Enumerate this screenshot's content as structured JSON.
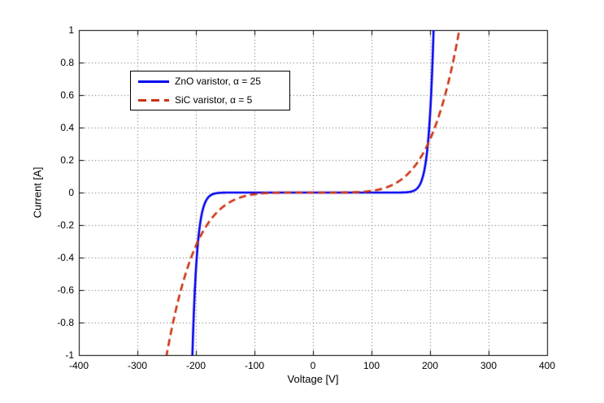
{
  "figure": {
    "background": "#ffffff",
    "axis_color": "#000000",
    "grid_style": "dotted",
    "grid_color": "rgba(0,0,0,0.6)"
  },
  "chart_data": {
    "type": "line",
    "title": "",
    "xlabel": "Voltage [V]",
    "ylabel": "Current [A]",
    "xlim": [
      -400,
      400
    ],
    "ylim": [
      -1,
      1
    ],
    "xticks": [
      -400,
      -300,
      -200,
      -100,
      0,
      100,
      200,
      300,
      400
    ],
    "xtick_labels": [
      "-400",
      "-300",
      "-200",
      "-100",
      "0",
      "100",
      "200",
      "300",
      "400"
    ],
    "yticks": [
      1,
      0.8,
      0.6,
      0.4,
      0.2,
      0,
      -0.2,
      -0.4,
      -0.6,
      -0.8,
      -1
    ],
    "ytick_labels": [
      "1",
      "0.8",
      "0.6",
      "0.4",
      "0.2",
      "0",
      "-0.2",
      "-0.4",
      "-0.6",
      "-0.8",
      "-1"
    ],
    "grid": "on",
    "legend": {
      "position": "upper-left-inside",
      "border_color": "#000000",
      "background": "#ffffff"
    },
    "series": [
      {
        "name": "ZnO varistor, α = 25",
        "color": "#0000EE",
        "style": "solid",
        "line_width": 2.6,
        "model": {
          "type": "power_law",
          "formula": "I = sign(V)*(|V|/Vref)^alpha",
          "vref": 206,
          "alpha": 25
        },
        "sample_points": {
          "V": [
            -206,
            -204,
            -200,
            -190,
            -175,
            -150,
            -100,
            0,
            100,
            150,
            175,
            190,
            200,
            204,
            206
          ],
          "I": [
            -1.0,
            -0.78,
            -0.48,
            -0.13,
            -0.017,
            -0.0004,
            0,
            0,
            0,
            0.0004,
            0.017,
            0.13,
            0.48,
            0.78,
            1.0
          ]
        }
      },
      {
        "name": "SiC varistor, α = 5",
        "color": "#CC3311",
        "style": "dashed",
        "line_width": 2.6,
        "dash_pattern": [
          9,
          5
        ],
        "model": {
          "type": "power_law",
          "formula": "I = sign(V)*(|V|/Vref)^alpha",
          "vref": 250,
          "alpha": 5
        },
        "sample_points": {
          "V": [
            -250,
            -225,
            -200,
            -150,
            -100,
            -50,
            0,
            50,
            100,
            150,
            200,
            225,
            250
          ],
          "I": [
            -1.0,
            -0.59,
            -0.33,
            -0.08,
            -0.01,
            -0.0003,
            0,
            0.0003,
            0.01,
            0.08,
            0.33,
            0.59,
            1.0
          ]
        }
      }
    ]
  }
}
